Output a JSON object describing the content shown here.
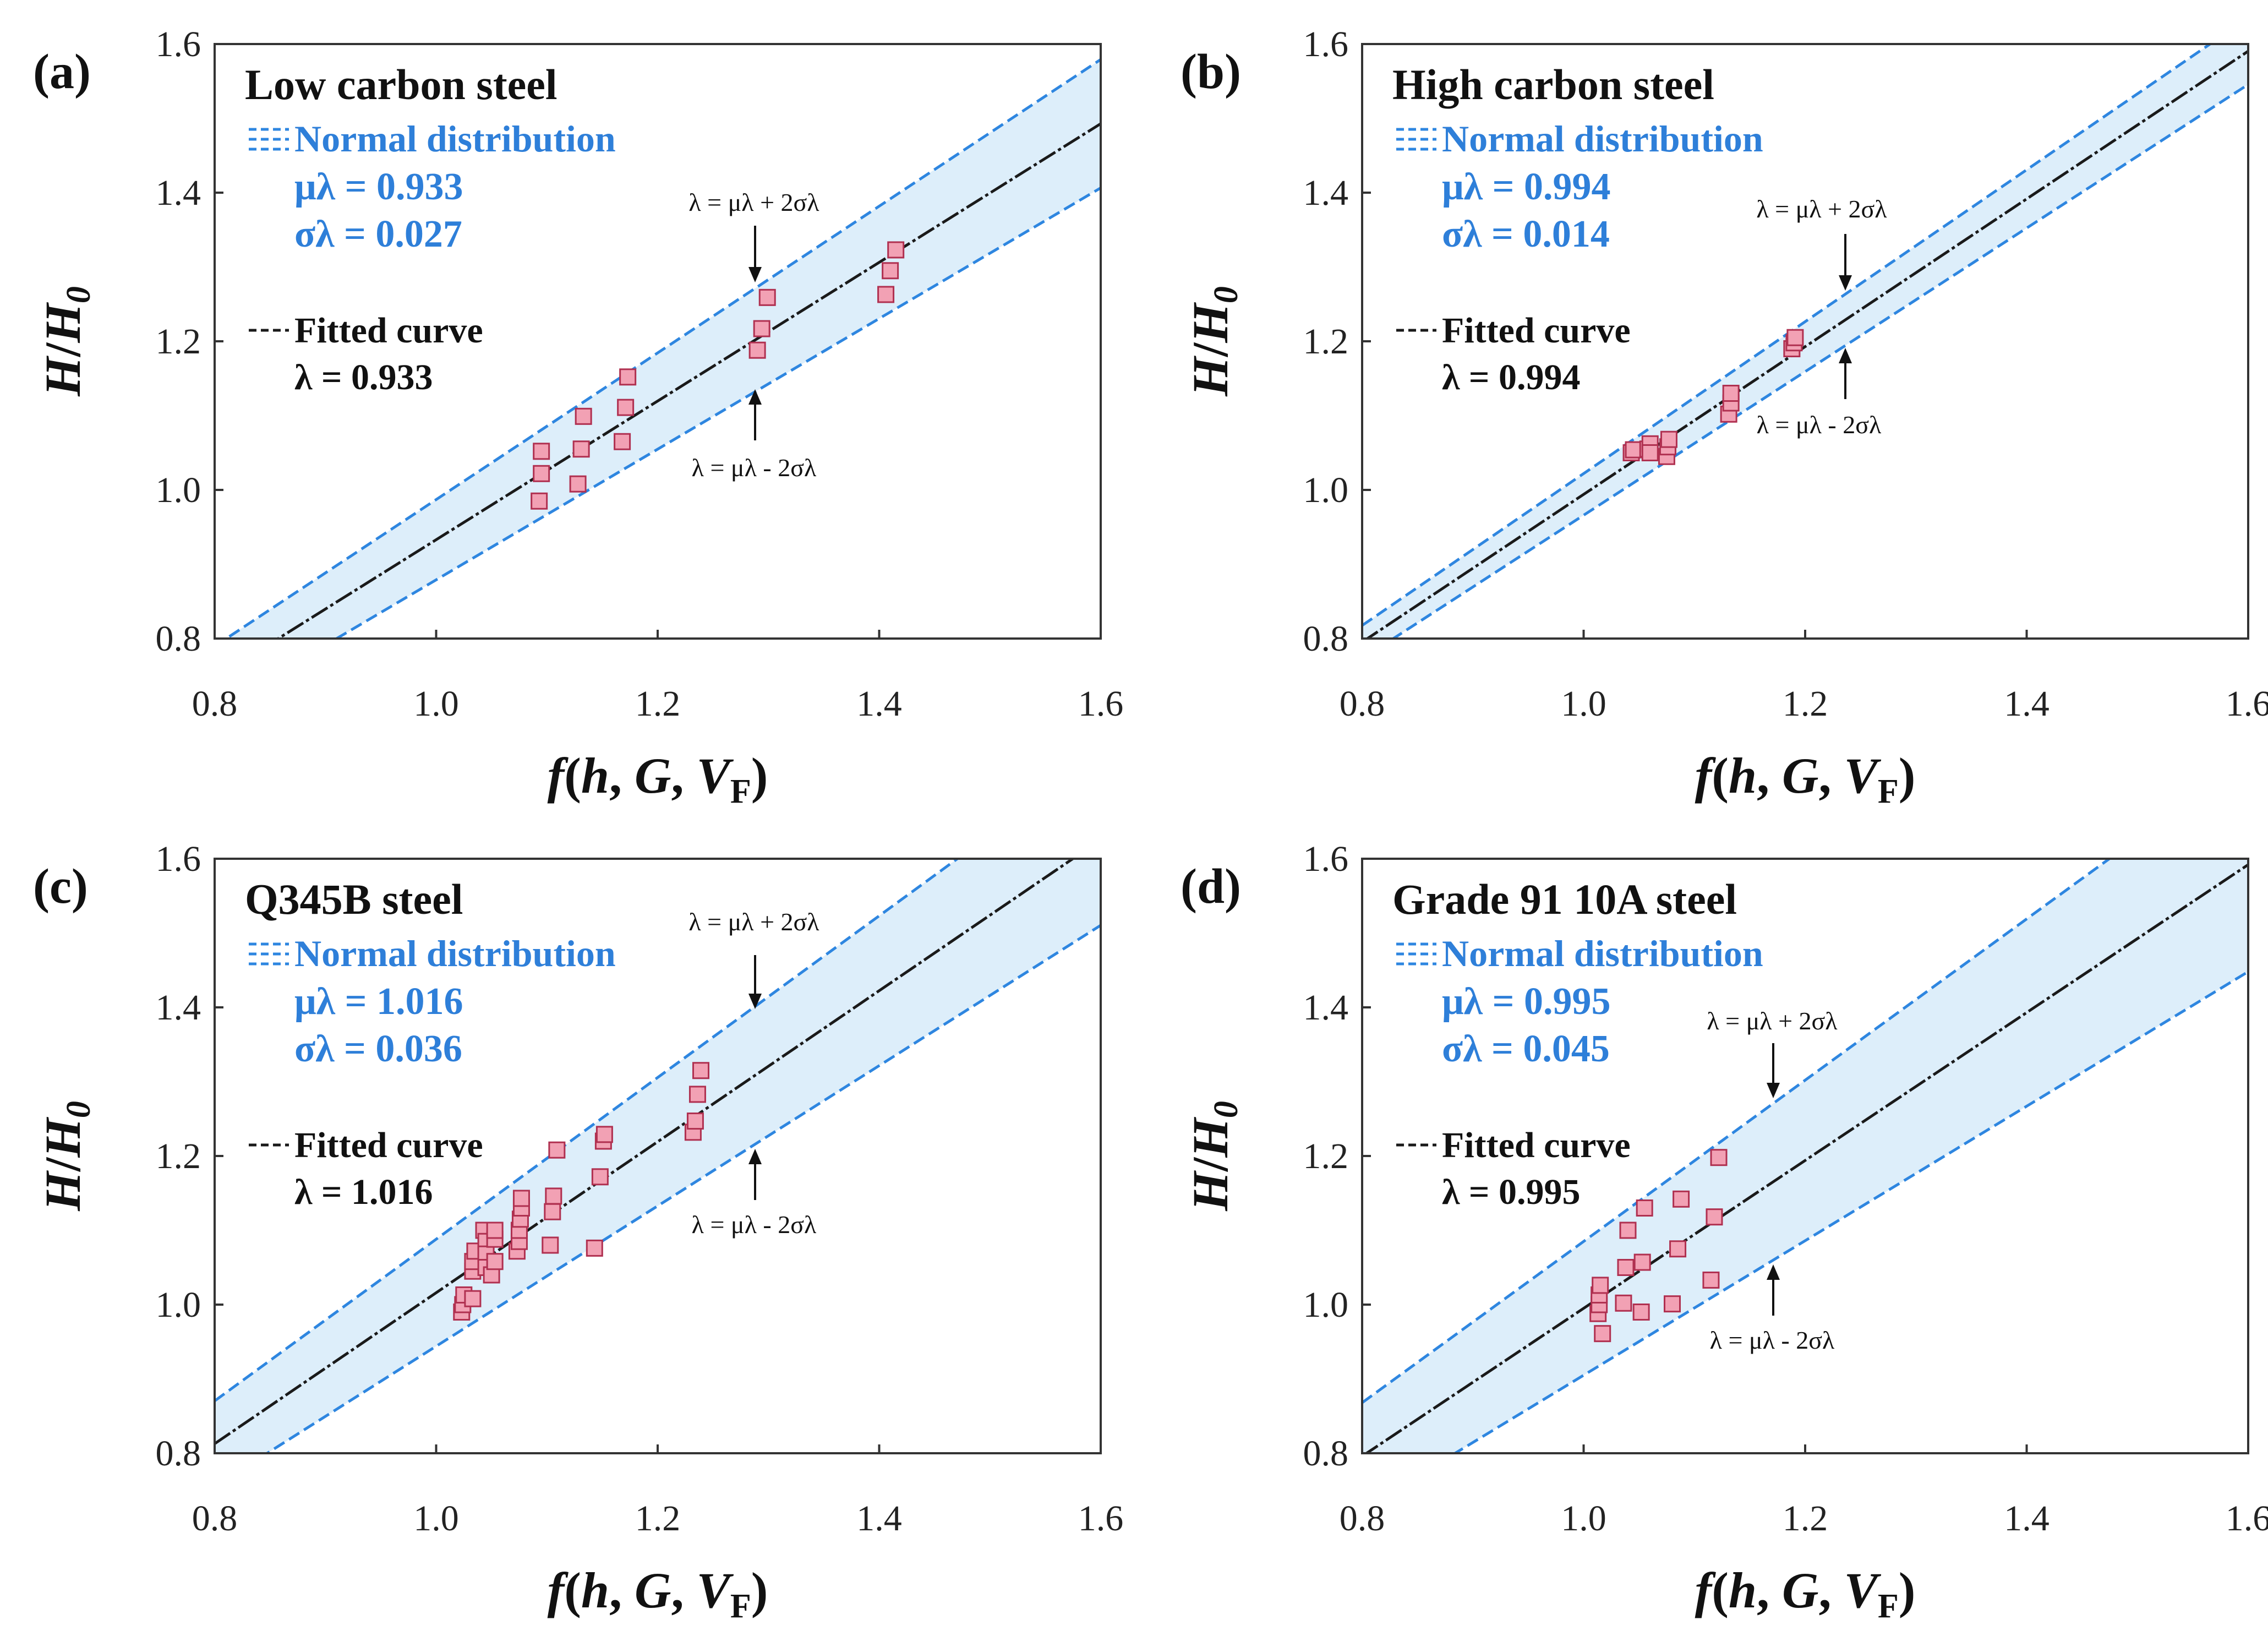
{
  "figure": {
    "x_axis_label": "f(h, G, V_F)",
    "y_axis_label": "H/H_0",
    "legend": {
      "normal_distribution": "Normal distribution",
      "fitted_curve": "Fitted curve"
    },
    "annotations": {
      "upper": "λ = μλ + 2σλ",
      "lower": "λ = μλ - 2σλ"
    },
    "colors": {
      "band_fill": "#ddeefa",
      "band_line": "#2e86e0",
      "fit_line": "#1a1a1a",
      "marker_fill": "#f2a1b4",
      "marker_edge": "#b03050",
      "stat_text": "#2e7fd9"
    }
  },
  "chart_data": [
    {
      "type": "scatter",
      "panel": "(a)",
      "title": "Low carbon steel",
      "mu": "μλ = 0.933",
      "sigma": "σλ = 0.027",
      "lambda_text": "λ = 0.933",
      "mu_value": 0.933,
      "sigma_value": 0.027,
      "xlim": [
        0.8,
        1.6
      ],
      "ylim": [
        0.8,
        1.6
      ],
      "xticks": [
        "0.8",
        "1.0",
        "1.2",
        "1.4",
        "1.6"
      ],
      "yticks": [
        "0.8",
        "1.0",
        "1.2",
        "1.4",
        "1.6"
      ],
      "points": [
        [
          1.093,
          0.985
        ],
        [
          1.095,
          1.022
        ],
        [
          1.095,
          1.052
        ],
        [
          1.128,
          1.008
        ],
        [
          1.131,
          1.055
        ],
        [
          1.133,
          1.099
        ],
        [
          1.168,
          1.065
        ],
        [
          1.171,
          1.111
        ],
        [
          1.173,
          1.152
        ],
        [
          1.29,
          1.188
        ],
        [
          1.294,
          1.217
        ],
        [
          1.299,
          1.259
        ],
        [
          1.406,
          1.263
        ],
        [
          1.41,
          1.295
        ],
        [
          1.415,
          1.323
        ]
      ]
    },
    {
      "type": "scatter",
      "panel": "(b)",
      "title": "High carbon steel",
      "mu": "μλ = 0.994",
      "sigma": "σλ = 0.014",
      "lambda_text": "λ = 0.994",
      "mu_value": 0.994,
      "sigma_value": 0.014,
      "xlim": [
        0.8,
        1.6
      ],
      "ylim": [
        0.8,
        1.6
      ],
      "xticks": [
        "0.8",
        "1.0",
        "1.2",
        "1.4",
        "1.6"
      ],
      "yticks": [
        "0.8",
        "1.0",
        "1.2",
        "1.4",
        "1.6"
      ],
      "points": [
        [
          1.043,
          1.05
        ],
        [
          1.045,
          1.054
        ],
        [
          1.058,
          1.055
        ],
        [
          1.06,
          1.062
        ],
        [
          1.06,
          1.05
        ],
        [
          1.075,
          1.045
        ],
        [
          1.076,
          1.058
        ],
        [
          1.077,
          1.068
        ],
        [
          1.131,
          1.102
        ],
        [
          1.133,
          1.117
        ],
        [
          1.133,
          1.13
        ],
        [
          1.188,
          1.19
        ],
        [
          1.19,
          1.198
        ],
        [
          1.191,
          1.205
        ]
      ]
    },
    {
      "type": "scatter",
      "panel": "(c)",
      "title": "Q345B steel",
      "mu": "μλ = 1.016",
      "sigma": "σλ = 0.036",
      "lambda_text": "λ = 1.016",
      "mu_value": 1.016,
      "sigma_value": 0.036,
      "xlim": [
        0.8,
        1.6
      ],
      "ylim": [
        0.8,
        1.6
      ],
      "xticks": [
        "0.8",
        "1.0",
        "1.2",
        "1.4",
        "1.6"
      ],
      "yticks": [
        "0.8",
        "1.0",
        "1.2",
        "1.4",
        "1.6"
      ],
      "points": [
        [
          1.023,
          0.99
        ],
        [
          1.024,
          1.0
        ],
        [
          1.025,
          1.013
        ],
        [
          1.033,
          1.008
        ],
        [
          1.033,
          1.045
        ],
        [
          1.033,
          1.058
        ],
        [
          1.035,
          1.072
        ],
        [
          1.043,
          1.1
        ],
        [
          1.045,
          1.085
        ],
        [
          1.045,
          1.068
        ],
        [
          1.045,
          1.05
        ],
        [
          1.05,
          1.04
        ],
        [
          1.053,
          1.058
        ],
        [
          1.053,
          1.088
        ],
        [
          1.053,
          1.1
        ],
        [
          1.073,
          1.072
        ],
        [
          1.075,
          1.085
        ],
        [
          1.075,
          1.1
        ],
        [
          1.076,
          1.115
        ],
        [
          1.077,
          1.13
        ],
        [
          1.077,
          1.143
        ],
        [
          1.103,
          1.08
        ],
        [
          1.105,
          1.125
        ],
        [
          1.106,
          1.146
        ],
        [
          1.109,
          1.208
        ],
        [
          1.143,
          1.076
        ],
        [
          1.148,
          1.172
        ],
        [
          1.151,
          1.22
        ],
        [
          1.152,
          1.229
        ],
        [
          1.232,
          1.232
        ],
        [
          1.234,
          1.247
        ],
        [
          1.236,
          1.283
        ],
        [
          1.239,
          1.315
        ]
      ]
    },
    {
      "type": "scatter",
      "panel": "(d)",
      "title": "Grade 91 10A steel",
      "mu": "μλ = 0.995",
      "sigma": "σλ = 0.045",
      "lambda_text": "λ = 0.995",
      "mu_value": 0.995,
      "sigma_value": 0.045,
      "xlim": [
        0.8,
        1.6
      ],
      "ylim": [
        0.8,
        1.6
      ],
      "xticks": [
        "0.8",
        "1.0",
        "1.2",
        "1.4",
        "1.6"
      ],
      "yticks": [
        "0.8",
        "1.0",
        "1.2",
        "1.4",
        "1.6"
      ],
      "points": [
        [
          1.013,
          0.988
        ],
        [
          1.014,
          1.0
        ],
        [
          1.014,
          1.013
        ],
        [
          1.015,
          1.026
        ],
        [
          1.017,
          0.961
        ],
        [
          1.036,
          1.002
        ],
        [
          1.038,
          1.05
        ],
        [
          1.04,
          1.1
        ],
        [
          1.052,
          0.99
        ],
        [
          1.053,
          1.057
        ],
        [
          1.055,
          1.13
        ],
        [
          1.08,
          1.001
        ],
        [
          1.085,
          1.075
        ],
        [
          1.088,
          1.142
        ],
        [
          1.115,
          1.033
        ],
        [
          1.118,
          1.118
        ],
        [
          1.122,
          1.198
        ]
      ]
    }
  ]
}
